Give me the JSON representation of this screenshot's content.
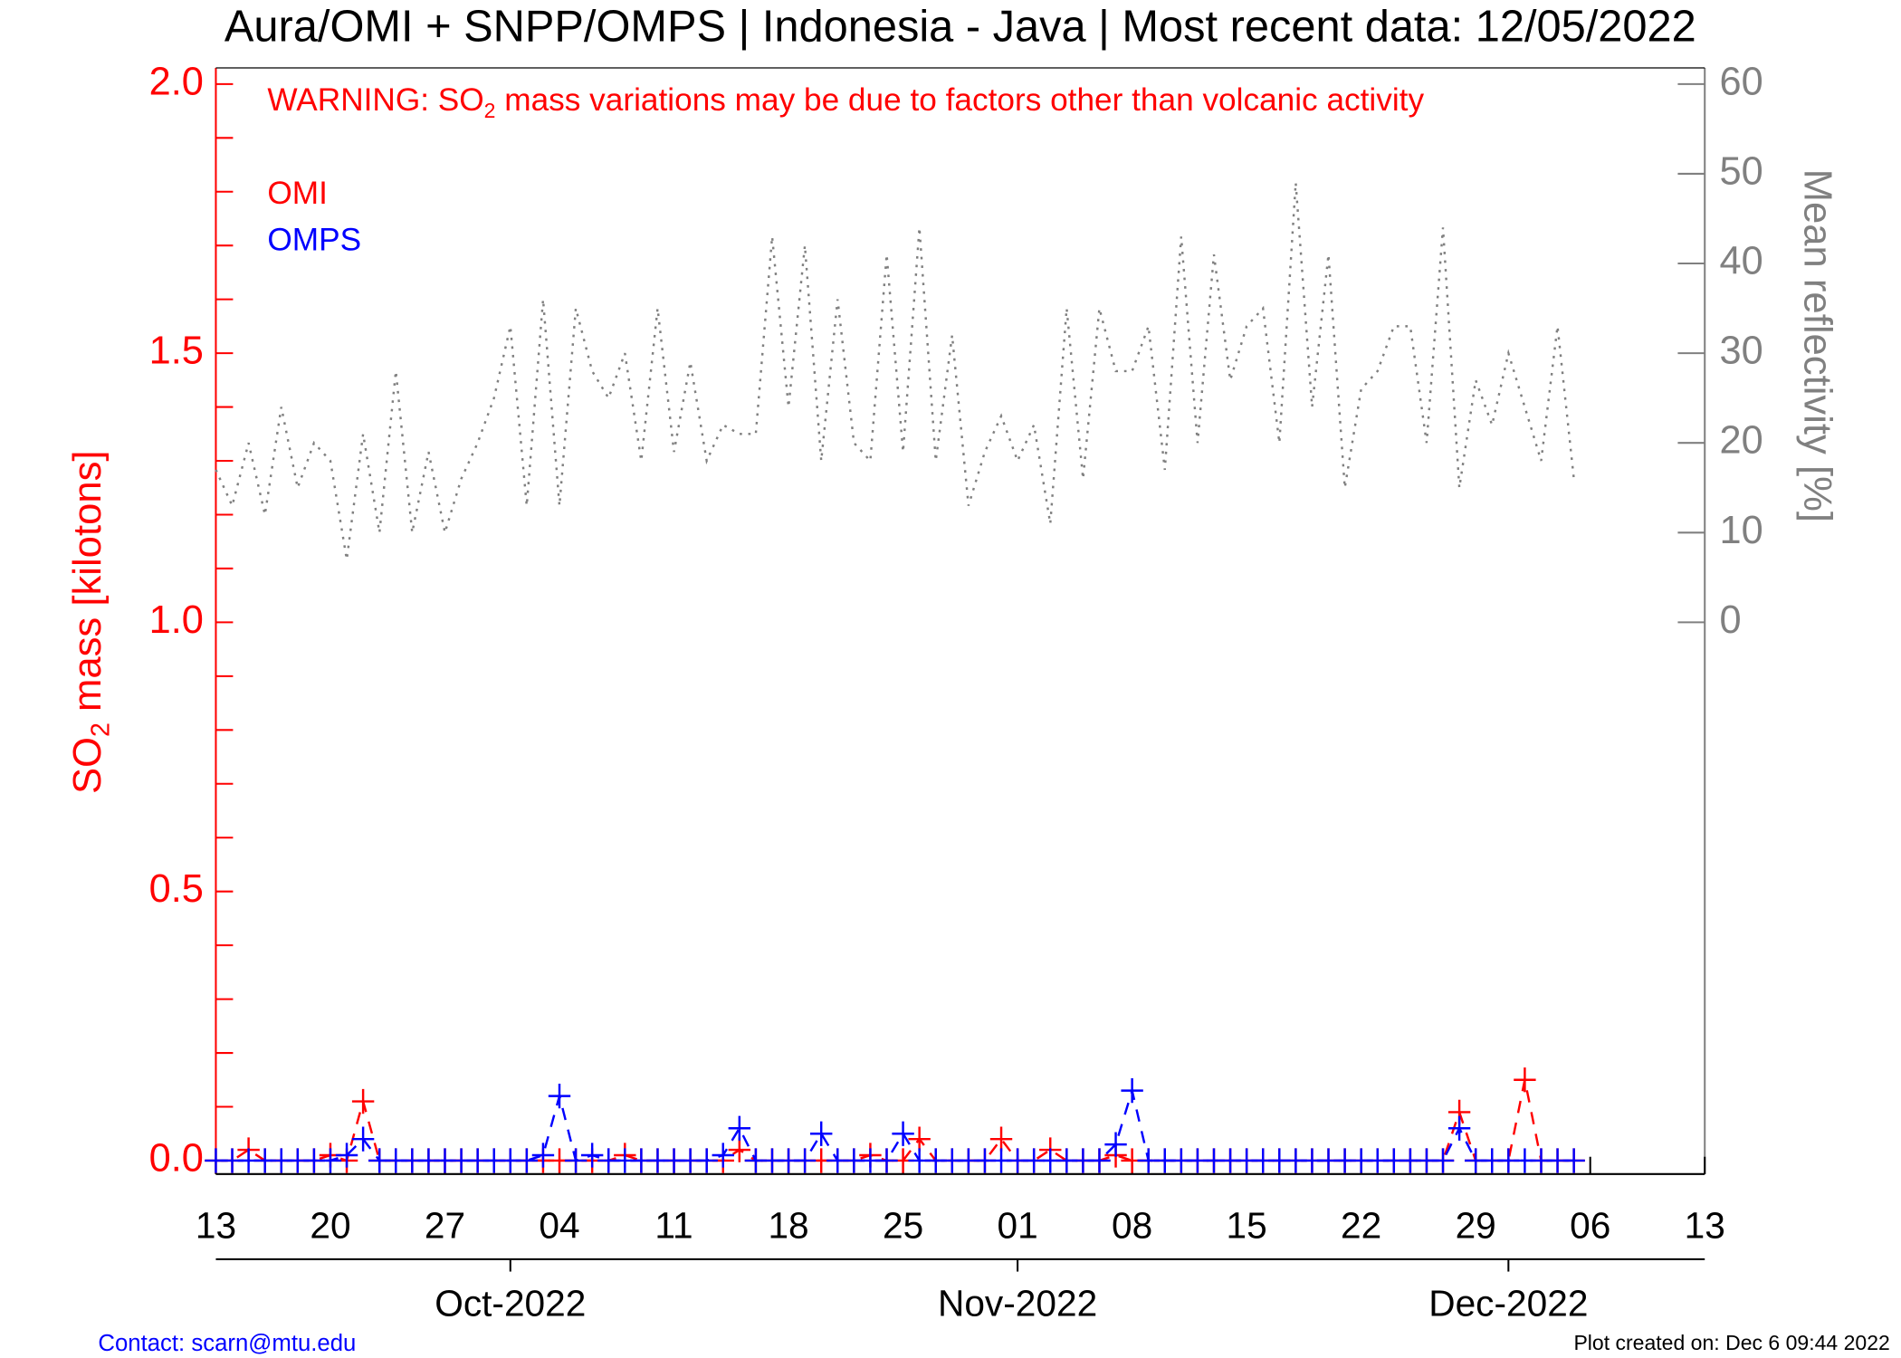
{
  "chart_data": {
    "type": "line",
    "title": "Aura/OMI + SNPP/OMPS | Indonesia - Java | Most recent data: 12/05/2022",
    "warning": {
      "prefix": "WARNING: SO",
      "sub": "2",
      "suffix": " mass variations may be due to factors other than volcanic activity"
    },
    "ylabel": {
      "prefix": "SO",
      "sub": "2",
      "suffix": " mass [kilotons]"
    },
    "y2label": "Mean reflectivity [%]",
    "footer_left": "Contact: scarn@mtu.edu",
    "footer_right": "Plot created on: Dec  6 09:44 2022",
    "x": [
      "2022-09-13",
      "2022-09-14",
      "2022-09-15",
      "2022-09-16",
      "2022-09-17",
      "2022-09-18",
      "2022-09-19",
      "2022-09-20",
      "2022-09-21",
      "2022-09-22",
      "2022-09-23",
      "2022-09-24",
      "2022-09-25",
      "2022-09-26",
      "2022-09-27",
      "2022-09-28",
      "2022-09-29",
      "2022-09-30",
      "2022-10-01",
      "2022-10-02",
      "2022-10-03",
      "2022-10-04",
      "2022-10-05",
      "2022-10-06",
      "2022-10-07",
      "2022-10-08",
      "2022-10-09",
      "2022-10-10",
      "2022-10-11",
      "2022-10-12",
      "2022-10-13",
      "2022-10-14",
      "2022-10-15",
      "2022-10-16",
      "2022-10-17",
      "2022-10-18",
      "2022-10-19",
      "2022-10-20",
      "2022-10-21",
      "2022-10-22",
      "2022-10-23",
      "2022-10-24",
      "2022-10-25",
      "2022-10-26",
      "2022-10-27",
      "2022-10-28",
      "2022-10-29",
      "2022-10-30",
      "2022-10-31",
      "2022-11-01",
      "2022-11-02",
      "2022-11-03",
      "2022-11-04",
      "2022-11-05",
      "2022-11-06",
      "2022-11-07",
      "2022-11-08",
      "2022-11-09",
      "2022-11-10",
      "2022-11-11",
      "2022-11-12",
      "2022-11-13",
      "2022-11-14",
      "2022-11-15",
      "2022-11-16",
      "2022-11-17",
      "2022-11-18",
      "2022-11-19",
      "2022-11-20",
      "2022-11-21",
      "2022-11-22",
      "2022-11-23",
      "2022-11-24",
      "2022-11-25",
      "2022-11-26",
      "2022-11-27",
      "2022-11-28",
      "2022-11-29",
      "2022-11-30",
      "2022-12-01",
      "2022-12-02",
      "2022-12-03",
      "2022-12-04",
      "2022-12-05"
    ],
    "series": [
      {
        "name": "OMI",
        "color": "#ff0000",
        "axis": "y",
        "values": [
          0,
          0,
          0.02,
          0,
          0,
          0,
          0,
          0.01,
          0,
          0.11,
          0,
          0,
          0,
          0,
          0,
          0,
          0,
          0,
          0,
          0,
          0,
          0,
          0,
          0,
          0,
          0.01,
          0,
          0,
          0,
          0,
          0,
          0,
          0.02,
          0,
          0,
          0,
          0,
          0,
          0,
          0,
          0.01,
          0,
          0,
          0.04,
          0,
          0,
          0,
          0,
          0.04,
          0,
          0,
          0.02,
          0,
          0,
          0,
          0.01,
          0,
          0,
          0,
          0,
          0,
          0,
          0,
          0,
          0,
          0,
          0,
          0,
          0,
          0,
          0,
          0,
          0,
          0,
          0,
          0,
          0.09,
          0,
          0,
          0,
          0.15,
          0,
          0,
          0
        ]
      },
      {
        "name": "OMPS",
        "color": "#0000ff",
        "axis": "y",
        "values": [
          0,
          0,
          0,
          0,
          0,
          0,
          0,
          0,
          0.01,
          0.04,
          0,
          0,
          0,
          0,
          0,
          0,
          0,
          0,
          0,
          0,
          0.01,
          0.12,
          0,
          0.01,
          0,
          0,
          0,
          0,
          0,
          0,
          0,
          0.01,
          0.06,
          0,
          0,
          0,
          0,
          0.05,
          0,
          0,
          0,
          0,
          0.05,
          0,
          0,
          0,
          0,
          0,
          0,
          0,
          0,
          0,
          0,
          0,
          0,
          0.03,
          0.13,
          0,
          0,
          0,
          0,
          0,
          0,
          0,
          0,
          0,
          0,
          0,
          0,
          0,
          0,
          0,
          0,
          0,
          0,
          0,
          0.06,
          0,
          0,
          0,
          0,
          0,
          0,
          0
        ]
      },
      {
        "color": "#808080",
        "axis": "y2",
        "values": [
          17,
          13,
          20,
          12,
          24,
          15,
          20,
          18,
          7,
          21,
          10,
          28,
          10,
          19,
          10,
          16,
          20,
          25,
          33,
          13,
          36,
          13,
          35,
          28,
          25,
          30,
          18,
          35,
          19,
          29,
          18,
          22,
          21,
          21,
          43,
          24,
          42,
          18,
          36,
          20,
          18,
          41,
          19,
          44,
          18,
          32,
          13,
          19,
          23,
          18,
          22,
          11,
          35,
          16,
          35,
          28,
          28,
          33,
          17,
          43,
          20,
          41,
          27,
          33,
          35,
          20,
          49,
          24,
          41,
          15,
          26,
          28,
          33,
          33,
          20,
          44,
          15,
          27,
          22,
          30,
          24,
          18,
          33,
          16
        ]
      }
    ],
    "xlim": [
      "2022-09-13",
      "2022-12-13"
    ],
    "xticks": [
      {
        "value": "2022-09-13",
        "label": "13"
      },
      {
        "value": "2022-09-20",
        "label": "20"
      },
      {
        "value": "2022-09-27",
        "label": "27"
      },
      {
        "value": "2022-10-04",
        "label": "04"
      },
      {
        "value": "2022-10-11",
        "label": "11"
      },
      {
        "value": "2022-10-18",
        "label": "18"
      },
      {
        "value": "2022-10-25",
        "label": "25"
      },
      {
        "value": "2022-11-01",
        "label": "01"
      },
      {
        "value": "2022-11-08",
        "label": "08"
      },
      {
        "value": "2022-11-15",
        "label": "15"
      },
      {
        "value": "2022-11-22",
        "label": "22"
      },
      {
        "value": "2022-11-29",
        "label": "29"
      },
      {
        "value": "2022-12-06",
        "label": "06"
      },
      {
        "value": "2022-12-13",
        "label": "13"
      }
    ],
    "month_ticks": [
      {
        "value": "2022-10-01",
        "label": "Oct-2022"
      },
      {
        "value": "2022-11-01",
        "label": "Nov-2022"
      },
      {
        "value": "2022-12-01",
        "label": "Dec-2022"
      }
    ],
    "ylim": [
      -0.025,
      2.03
    ],
    "yticks": [
      {
        "value": 0,
        "label": "0.0"
      },
      {
        "value": 0.5,
        "label": "0.5"
      },
      {
        "value": 1,
        "label": "1.0"
      },
      {
        "value": 1.5,
        "label": "1.5"
      },
      {
        "value": 2,
        "label": "2.0"
      }
    ],
    "yminorticks": [
      0.1,
      0.2,
      0.3,
      0.4,
      0.6,
      0.7,
      0.8,
      0.9,
      1.1,
      1.2,
      1.3,
      1.4,
      1.6,
      1.7,
      1.8,
      1.9
    ],
    "y2lim": [
      -61.5,
      61.8
    ],
    "y2ticks": [
      0,
      10,
      20,
      30,
      40,
      50,
      60
    ]
  }
}
